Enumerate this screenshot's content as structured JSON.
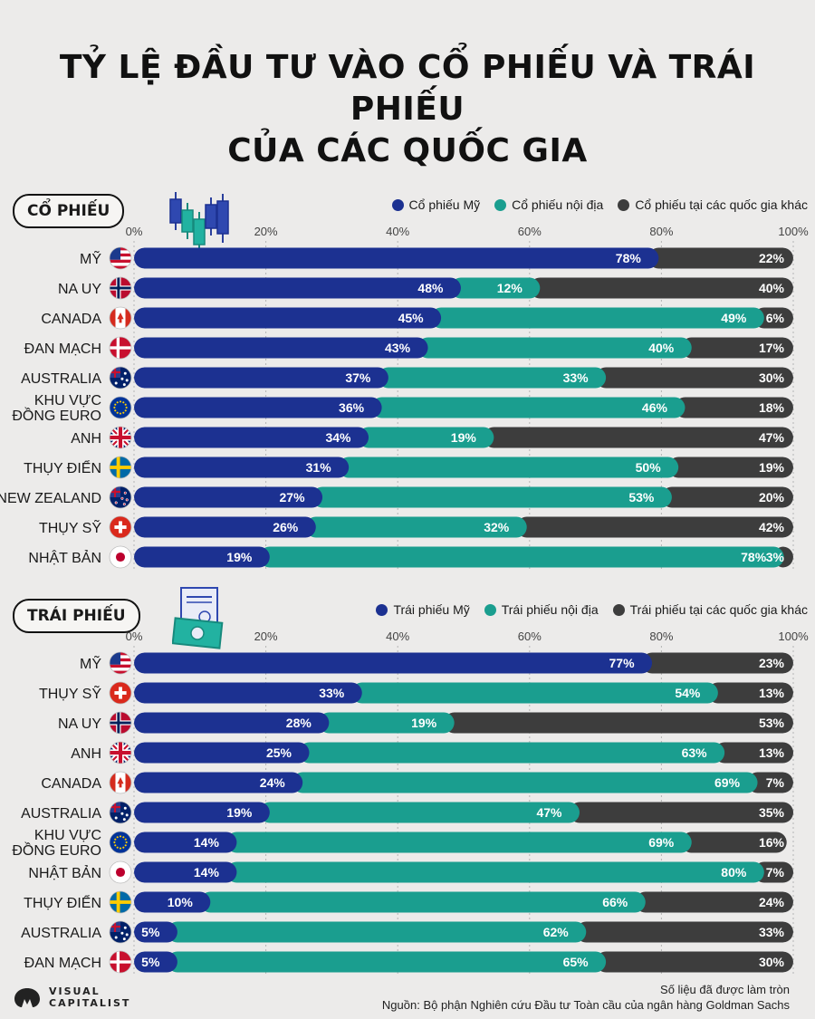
{
  "title": {
    "line1": "TỶ LỆ ĐẦU TƯ VÀO CỔ PHIẾU VÀ TRÁI PHIẾU",
    "line2": "CỦA CÁC QUỐC GIA"
  },
  "colors": {
    "us": "#1c3191",
    "domestic": "#1a9e8f",
    "other": "#3d3d3d"
  },
  "chart_data": [
    {
      "type": "bar",
      "stacked": true,
      "orientation": "horizontal",
      "title": "CỔ PHIẾU",
      "legend": [
        "Cổ phiếu Mỹ",
        "Cổ phiếu nội địa",
        "Cổ phiếu tại các quốc gia khác"
      ],
      "ticks": [
        "0%",
        "20%",
        "40%",
        "60%",
        "80%",
        "100%"
      ],
      "xlim": [
        0,
        100
      ],
      "categories": [
        {
          "label": [
            "MỸ"
          ],
          "flag": "us"
        },
        {
          "label": [
            "NA UY"
          ],
          "flag": "no"
        },
        {
          "label": [
            "CANADA"
          ],
          "flag": "ca"
        },
        {
          "label": [
            "ĐAN MẠCH"
          ],
          "flag": "dk"
        },
        {
          "label": [
            "AUSTRALIA"
          ],
          "flag": "au"
        },
        {
          "label": [
            "KHU VỰC",
            "ĐỒNG EURO"
          ],
          "flag": "eu"
        },
        {
          "label": [
            "ANH"
          ],
          "flag": "uk"
        },
        {
          "label": [
            "THỤY ĐIỂN"
          ],
          "flag": "se"
        },
        {
          "label": [
            "NEW ZEALAND"
          ],
          "flag": "nz"
        },
        {
          "label": [
            "THỤY SỸ"
          ],
          "flag": "ch"
        },
        {
          "label": [
            "NHẬT BẢN"
          ],
          "flag": "jp"
        }
      ],
      "series": [
        {
          "name": "Cổ phiếu Mỹ",
          "values": [
            78,
            48,
            45,
            43,
            37,
            36,
            34,
            31,
            27,
            26,
            19
          ]
        },
        {
          "name": "Cổ phiếu nội địa",
          "values": [
            0,
            12,
            49,
            40,
            33,
            46,
            19,
            50,
            53,
            32,
            78
          ]
        },
        {
          "name": "Cổ phiếu tại các quốc gia khác",
          "values": [
            22,
            40,
            6,
            17,
            30,
            18,
            47,
            19,
            20,
            42,
            3
          ]
        }
      ]
    },
    {
      "type": "bar",
      "stacked": true,
      "orientation": "horizontal",
      "title": "TRÁI PHIẾU",
      "legend": [
        "Trái phiếu Mỹ",
        "Trái phiếu nội địa",
        "Trái phiếu tại các quốc gia khác"
      ],
      "ticks": [
        "0%",
        "20%",
        "40%",
        "60%",
        "80%",
        "100%"
      ],
      "xlim": [
        0,
        100
      ],
      "categories": [
        {
          "label": [
            "MỸ"
          ],
          "flag": "us"
        },
        {
          "label": [
            "THỤY SỸ"
          ],
          "flag": "ch"
        },
        {
          "label": [
            "NA UY"
          ],
          "flag": "no"
        },
        {
          "label": [
            "ANH"
          ],
          "flag": "uk"
        },
        {
          "label": [
            "CANADA"
          ],
          "flag": "ca"
        },
        {
          "label": [
            "AUSTRALIA"
          ],
          "flag": "au"
        },
        {
          "label": [
            "KHU VỰC",
            "ĐỒNG EURO"
          ],
          "flag": "eu"
        },
        {
          "label": [
            "NHẬT BẢN"
          ],
          "flag": "jp"
        },
        {
          "label": [
            "THỤY ĐIỂN"
          ],
          "flag": "se"
        },
        {
          "label": [
            "AUSTRALIA"
          ],
          "flag": "au"
        },
        {
          "label": [
            "ĐAN MẠCH"
          ],
          "flag": "dk"
        }
      ],
      "series": [
        {
          "name": "Trái phiếu Mỹ",
          "values": [
            77,
            33,
            28,
            25,
            24,
            19,
            14,
            14,
            10,
            5,
            5
          ]
        },
        {
          "name": "Trái phiếu nội địa",
          "values": [
            0,
            54,
            19,
            63,
            69,
            47,
            69,
            80,
            66,
            62,
            65
          ]
        },
        {
          "name": "Trái phiếu tại các quốc gia khác",
          "values": [
            23,
            13,
            53,
            13,
            7,
            35,
            16,
            7,
            24,
            33,
            30
          ]
        }
      ]
    }
  ],
  "footer": {
    "note": "Số liệu đã được làm tròn",
    "source": "Nguồn: Bộ phận Nghiên cứu Đầu tư Toàn cầu của ngân hàng Goldman Sachs",
    "logo_line1": "VISUAL",
    "logo_line2": "CAPITALIST"
  }
}
